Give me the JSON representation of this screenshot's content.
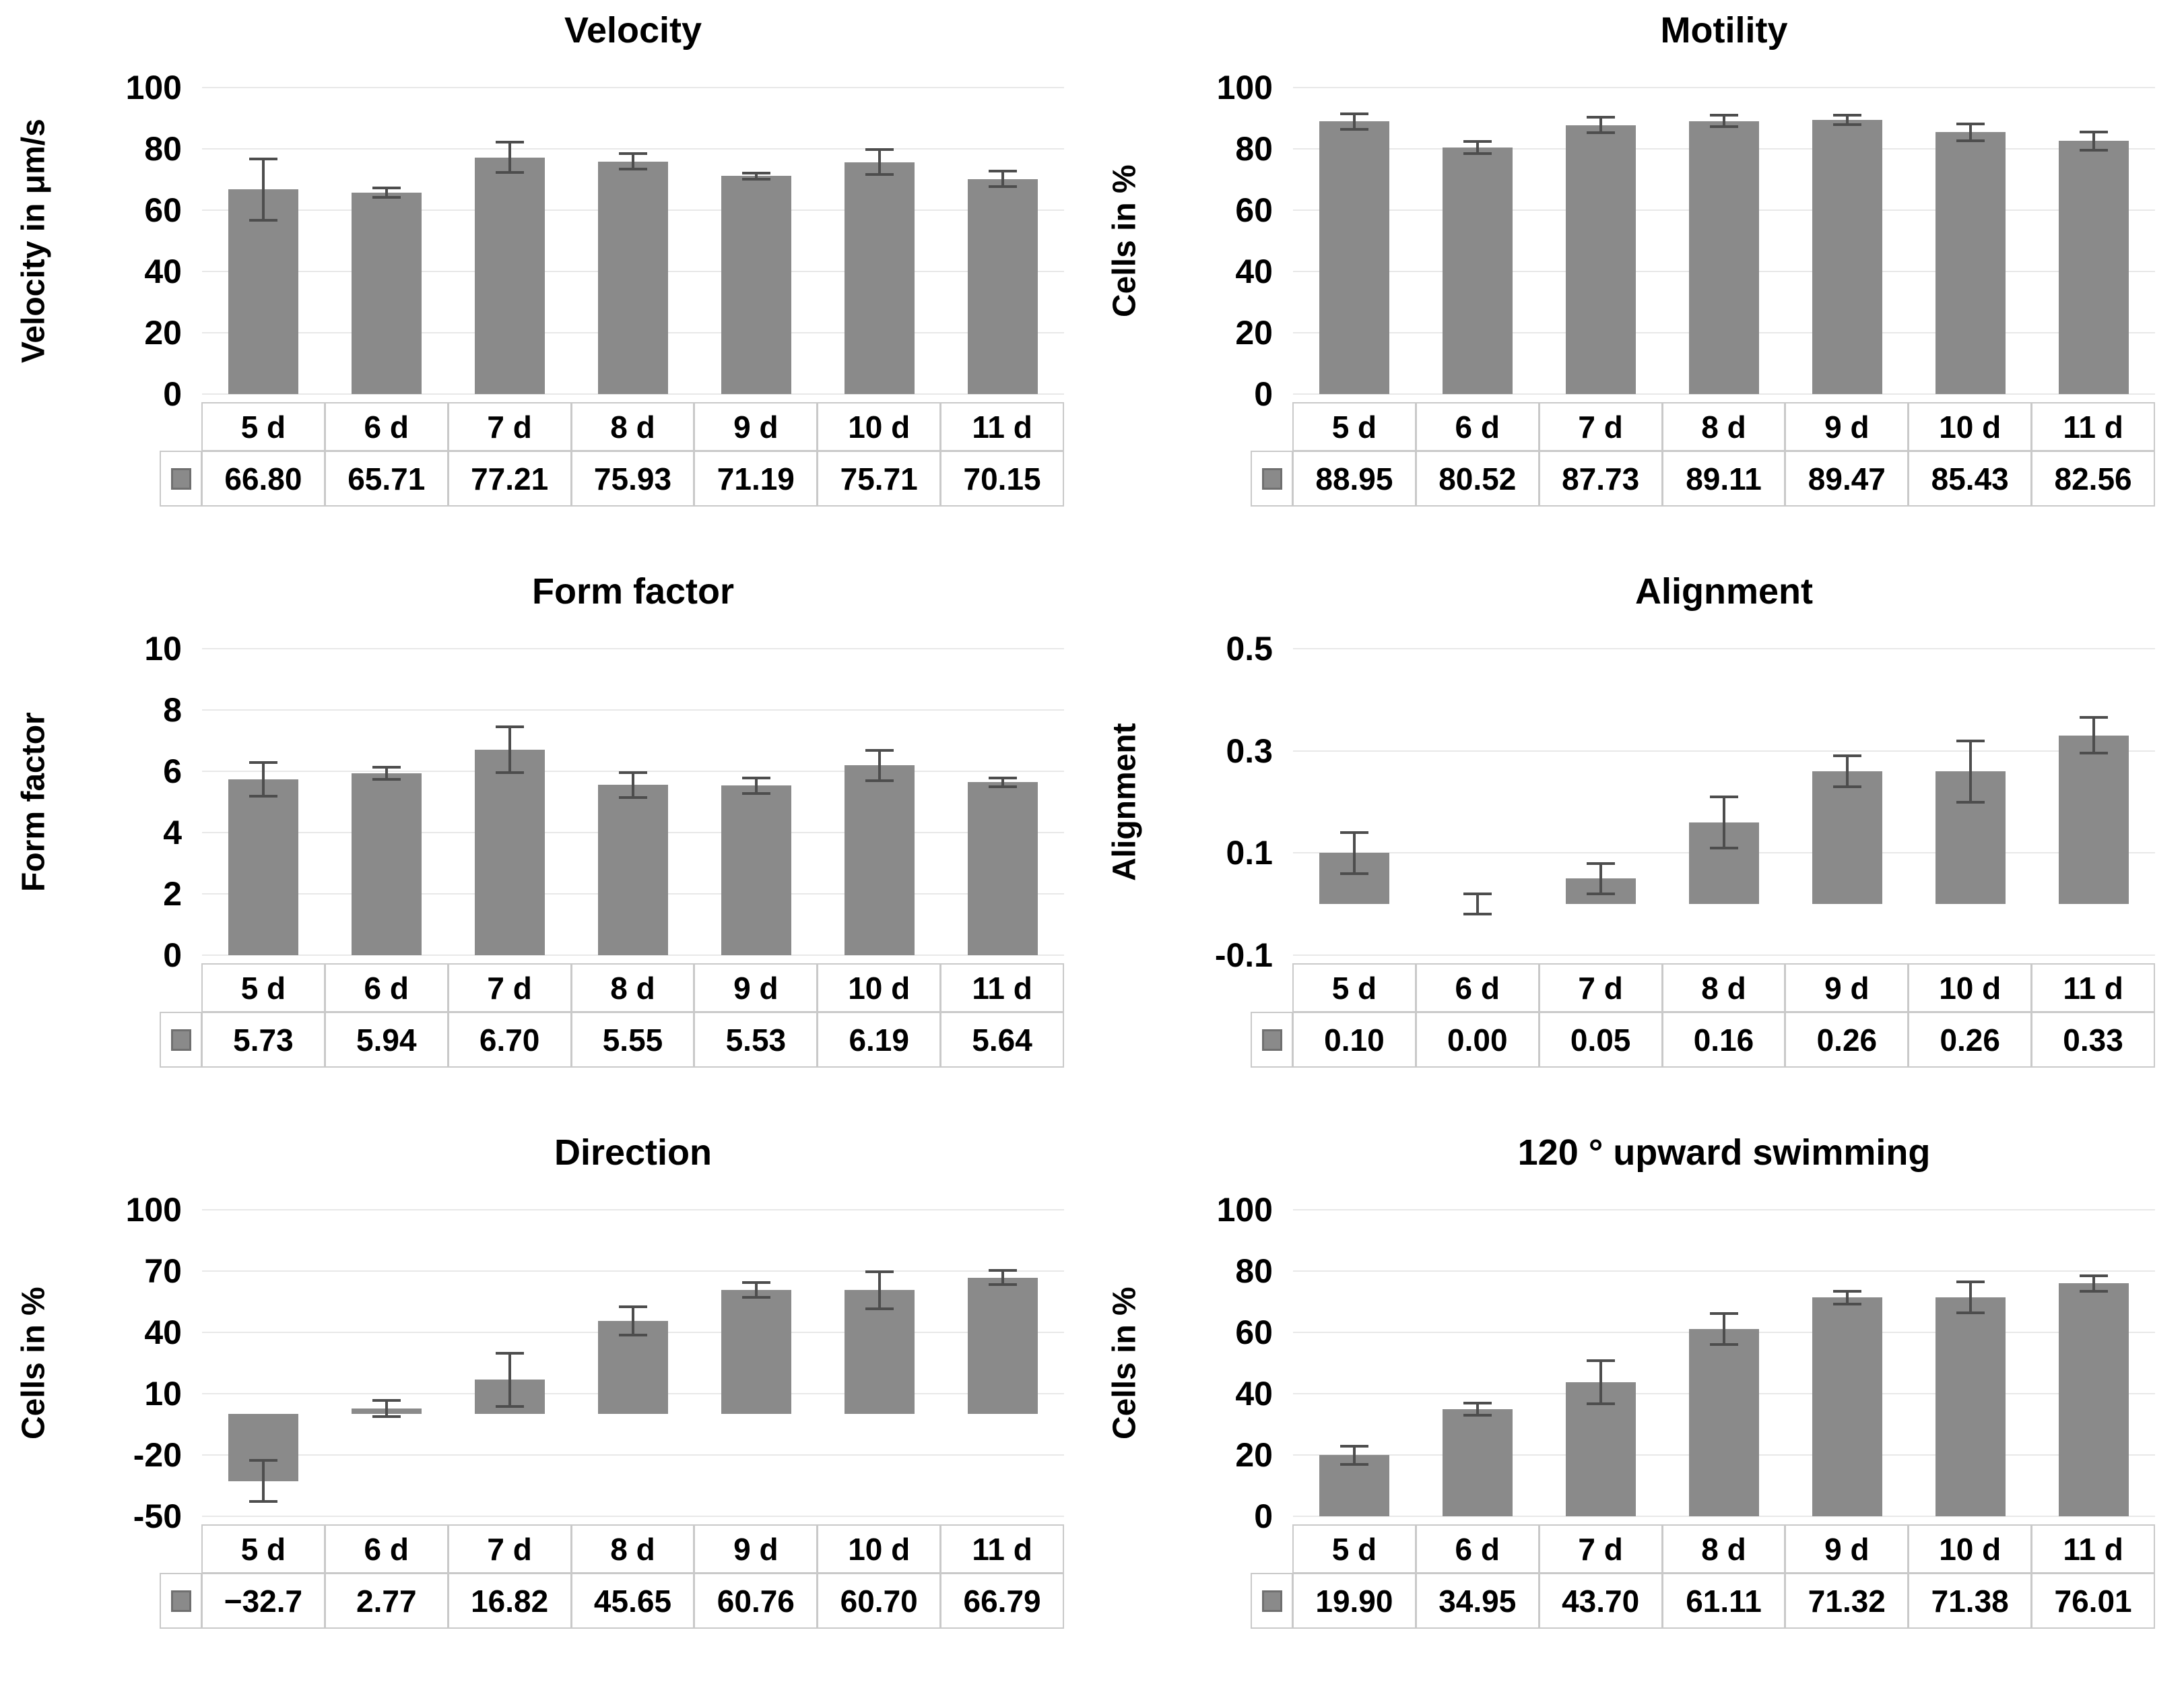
{
  "figure_title": "",
  "colors": {
    "bar": "#8a8a8a",
    "error_bar": "#4d4d4d",
    "gridline": "#e8e8e8",
    "table_border": "#c9c9c9",
    "text": "#000000",
    "background": "#ffffff"
  },
  "chart_data": [
    {
      "type": "bar",
      "title": "Velocity",
      "ylabel": "Velocity in μm/s",
      "categories": [
        "5 d",
        "6 d",
        "7 d",
        "8 d",
        "9 d",
        "10 d",
        "11 d"
      ],
      "values": [
        66.8,
        65.71,
        77.21,
        75.93,
        71.19,
        75.71,
        70.15
      ],
      "value_labels": [
        "66.80",
        "65.71",
        "77.21",
        "75.93",
        "71.19",
        "75.71",
        "70.15"
      ],
      "errors": [
        10,
        1.5,
        5,
        2.5,
        1,
        4,
        2.5
      ],
      "ymin": 0,
      "ymax": 100,
      "yticks": [
        "100",
        "80",
        "60",
        "40",
        "20",
        "0"
      ],
      "grid": true,
      "legend_position": "table-left"
    },
    {
      "type": "bar",
      "title": "Motility",
      "ylabel": "Cells in %",
      "categories": [
        "5 d",
        "6 d",
        "7 d",
        "8 d",
        "9 d",
        "10 d",
        "11 d"
      ],
      "values": [
        88.95,
        80.52,
        87.73,
        89.11,
        89.47,
        85.43,
        82.56
      ],
      "value_labels": [
        "88.95",
        "80.52",
        "87.73",
        "89.11",
        "89.47",
        "85.43",
        "82.56"
      ],
      "errors": [
        2.5,
        2,
        2.5,
        1.8,
        1.5,
        2.8,
        3
      ],
      "ymin": 0,
      "ymax": 100,
      "yticks": [
        "100",
        "80",
        "60",
        "40",
        "20",
        "0"
      ],
      "grid": true,
      "legend_position": "table-left"
    },
    {
      "type": "bar",
      "title": "Form factor",
      "ylabel": "Form factor",
      "categories": [
        "5 d",
        "6 d",
        "7 d",
        "8 d",
        "9 d",
        "10 d",
        "11 d"
      ],
      "values": [
        5.73,
        5.94,
        6.7,
        5.55,
        5.53,
        6.19,
        5.64
      ],
      "value_labels": [
        "5.73",
        "5.94",
        "6.70",
        "5.55",
        "5.53",
        "6.19",
        "5.64"
      ],
      "errors": [
        0.55,
        0.2,
        0.75,
        0.4,
        0.25,
        0.5,
        0.15
      ],
      "ymin": 0,
      "ymax": 10,
      "yticks": [
        "10",
        "8",
        "6",
        "4",
        "2",
        "0"
      ],
      "grid": true,
      "legend_position": "table-left"
    },
    {
      "type": "bar",
      "title": "Alignment",
      "ylabel": "Alignment",
      "categories": [
        "5 d",
        "6 d",
        "7 d",
        "8 d",
        "9 d",
        "10 d",
        "11 d"
      ],
      "values": [
        0.1,
        0.0,
        0.05,
        0.16,
        0.26,
        0.26,
        0.33
      ],
      "value_labels": [
        "0.10",
        "0.00",
        "0.05",
        "0.16",
        "0.26",
        "0.26",
        "0.33"
      ],
      "errors": [
        0.04,
        0.02,
        0.03,
        0.05,
        0.03,
        0.06,
        0.035
      ],
      "ymin": -0.1,
      "ymax": 0.5,
      "yticks": [
        "0.5",
        "0.3",
        "0.1",
        "-0.1"
      ],
      "grid": true,
      "legend_position": "table-left"
    },
    {
      "type": "bar",
      "title": "Direction",
      "ylabel": "Cells in %",
      "categories": [
        "5 d",
        "6 d",
        "7 d",
        "8 d",
        "9 d",
        "10 d",
        "11 d"
      ],
      "values": [
        -32.7,
        2.77,
        16.82,
        45.65,
        60.76,
        60.7,
        66.79
      ],
      "value_labels": [
        "−32.7",
        "2.77",
        "16.82",
        "45.65",
        "60.76",
        "60.70",
        "66.79"
      ],
      "errors": [
        10,
        4,
        13,
        7,
        3.5,
        9,
        3.5
      ],
      "ymin": -50,
      "ymax": 100,
      "yticks": [
        "100",
        "70",
        "40",
        "10",
        "-20",
        "-50"
      ],
      "grid": true,
      "legend_position": "table-left"
    },
    {
      "type": "bar",
      "title": "120 ° upward swimming",
      "ylabel": "Cells in %",
      "categories": [
        "5 d",
        "6 d",
        "7 d",
        "8 d",
        "9 d",
        "10 d",
        "11 d"
      ],
      "values": [
        19.9,
        34.95,
        43.7,
        61.11,
        71.32,
        71.38,
        76.01
      ],
      "value_labels": [
        "19.90",
        "34.95",
        "43.70",
        "61.11",
        "71.32",
        "71.38",
        "76.01"
      ],
      "errors": [
        3,
        2,
        7,
        5,
        2,
        5,
        2.5
      ],
      "ymin": 0,
      "ymax": 100,
      "yticks": [
        "100",
        "80",
        "60",
        "40",
        "20",
        "0"
      ],
      "grid": true,
      "legend_position": "table-left"
    }
  ]
}
